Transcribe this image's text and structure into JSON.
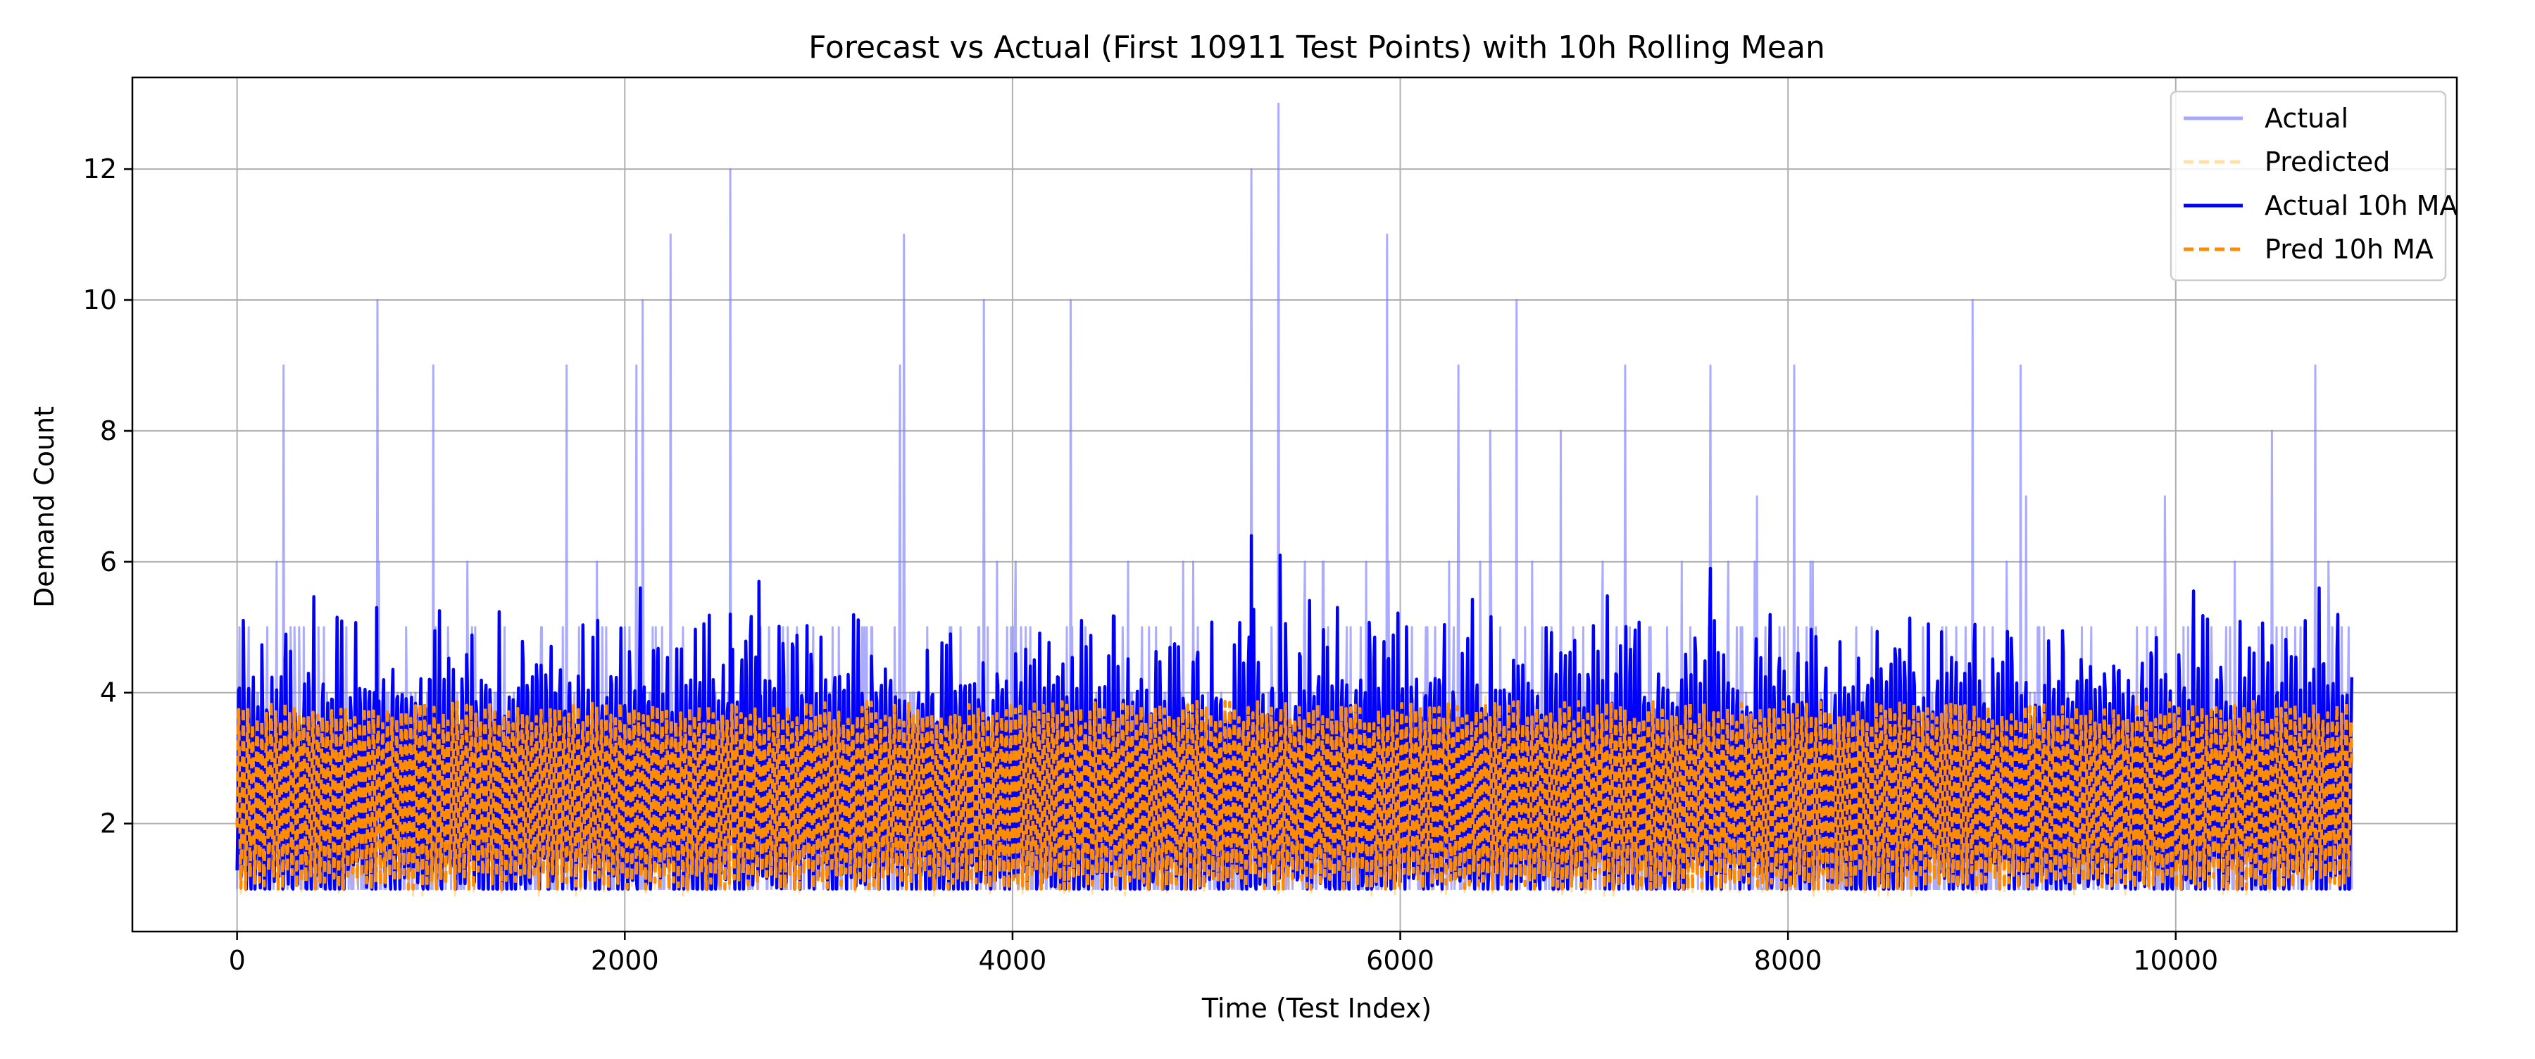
{
  "chart_data": {
    "type": "line",
    "title": "Forecast vs Actual (First 10911 Test Points) with 10h Rolling Mean",
    "xlabel": "Time (Test Index)",
    "ylabel": "Demand Count",
    "xlim": [
      -540,
      11450
    ],
    "ylim": [
      0.35,
      13.4
    ],
    "xticks": [
      0,
      2000,
      4000,
      6000,
      8000,
      10000
    ],
    "yticks": [
      2,
      4,
      6,
      8,
      10,
      12
    ],
    "grid": true,
    "legend_position": "top-right",
    "n_points": 10911,
    "x_range": [
      0,
      10910
    ],
    "series": [
      {
        "name": "Actual",
        "color": "#8080ff",
        "style": "solid",
        "description_values": "hourly counts ranging 1 to 13; mostly 1-6 with spikes",
        "spikes": [
          {
            "x": 240,
            "y": 9
          },
          {
            "x": 725,
            "y": 10
          },
          {
            "x": 1010,
            "y": 9
          },
          {
            "x": 1700,
            "y": 9
          },
          {
            "x": 2060,
            "y": 9
          },
          {
            "x": 2090,
            "y": 10
          },
          {
            "x": 2235,
            "y": 11
          },
          {
            "x": 2545,
            "y": 12
          },
          {
            "x": 3420,
            "y": 9
          },
          {
            "x": 3440,
            "y": 11
          },
          {
            "x": 3850,
            "y": 10
          },
          {
            "x": 4300,
            "y": 10
          },
          {
            "x": 5230,
            "y": 12
          },
          {
            "x": 5370,
            "y": 13
          },
          {
            "x": 5930,
            "y": 11
          },
          {
            "x": 6300,
            "y": 9
          },
          {
            "x": 6600,
            "y": 10
          },
          {
            "x": 7160,
            "y": 9
          },
          {
            "x": 7600,
            "y": 9
          },
          {
            "x": 8030,
            "y": 9
          },
          {
            "x": 8950,
            "y": 10
          },
          {
            "x": 9200,
            "y": 9
          },
          {
            "x": 10720,
            "y": 9
          }
        ]
      },
      {
        "name": "Predicted",
        "color": "#ffa500",
        "style": "dashed-light",
        "range": [
          1,
          4
        ]
      },
      {
        "name": "Actual 10h MA",
        "color": "#0000ff",
        "style": "solid",
        "range": [
          1,
          6.4
        ],
        "peaks": [
          {
            "x": 720,
            "y": 5.3
          },
          {
            "x": 2080,
            "y": 5.6
          },
          {
            "x": 2545,
            "y": 5.2
          },
          {
            "x": 2690,
            "y": 5.7
          },
          {
            "x": 5230,
            "y": 6.4
          },
          {
            "x": 5380,
            "y": 6.1
          },
          {
            "x": 7600,
            "y": 5.9
          },
          {
            "x": 10740,
            "y": 5.6
          }
        ]
      },
      {
        "name": "Pred 10h MA",
        "color": "#ff8c00",
        "style": "dashed",
        "range": [
          1,
          4
        ]
      }
    ]
  },
  "legend": {
    "items": [
      {
        "label": "Actual",
        "color": "#8080ff",
        "dash": "none",
        "opacity": "0.7"
      },
      {
        "label": "Predicted",
        "color": "#ffa500",
        "dash": "14 8",
        "opacity": "0.35"
      },
      {
        "label": "Actual 10h MA",
        "color": "#0000ff",
        "dash": "none",
        "opacity": "1"
      },
      {
        "label": "Pred 10h MA",
        "color": "#ff8c00",
        "dash": "14 8",
        "opacity": "1"
      }
    ]
  }
}
